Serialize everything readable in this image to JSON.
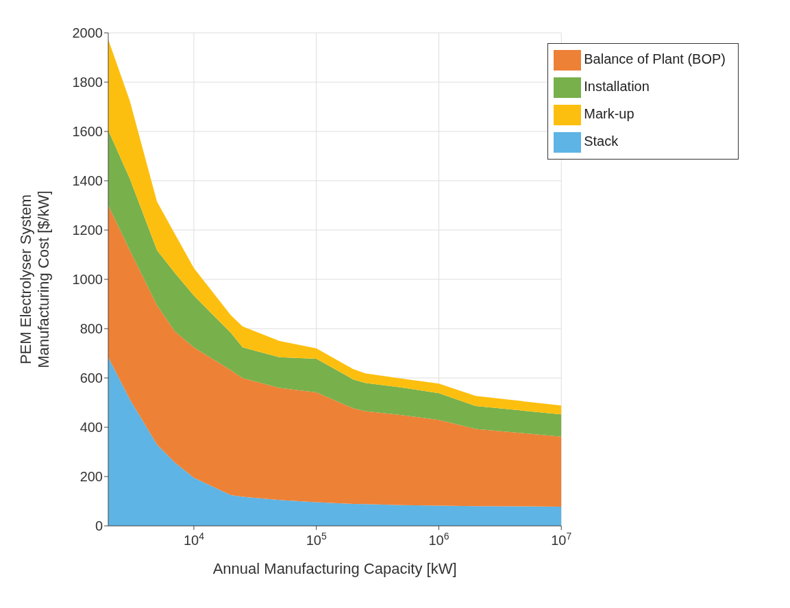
{
  "chart_data": {
    "type": "area",
    "stacked": true,
    "xlabel": "Annual Manufacturing Capacity [kW]",
    "ylabel": "PEM Electrolyser System\nManufacturing Cost [$/kW]",
    "x": [
      2000,
      3000,
      5000,
      7000,
      10000,
      20000,
      25000,
      50000,
      100000,
      200000,
      250000,
      500000,
      1000000,
      2000000,
      10000000
    ],
    "series": [
      {
        "name": "Stack",
        "color": "#5db4e5",
        "values": [
          684,
          513,
          330,
          257,
          195,
          125,
          118,
          105,
          96,
          89,
          88,
          84,
          82,
          80,
          78
        ]
      },
      {
        "name": "Balance of Plant (BOP)",
        "color": "#ed8136",
        "values": [
          616,
          605,
          565,
          532,
          529,
          507,
          481,
          455,
          446,
          388,
          377,
          365,
          348,
          313,
          284
        ]
      },
      {
        "name": "Installation",
        "color": "#78b04b",
        "values": [
          305,
          290,
          223,
          237,
          210,
          151,
          125,
          124,
          136,
          117,
          115,
          112,
          108,
          93,
          90
        ]
      },
      {
        "name": "Mark-up",
        "color": "#fdbf0f",
        "values": [
          368,
          316,
          197,
          158,
          112,
          72,
          85,
          66,
          42,
          42,
          39,
          36,
          39,
          41,
          36
        ]
      }
    ],
    "log": "x",
    "xlim": [
      2000,
      10000000
    ],
    "xticks": [
      {
        "value": 10000,
        "label": "10$^{4}$"
      },
      {
        "value": 100000,
        "label": "10$^{5}$"
      },
      {
        "value": 1000000,
        "label": "10$^{6}$"
      },
      {
        "value": 10000000,
        "label": "10$^{7}$"
      }
    ],
    "ylim": [
      0,
      2000
    ],
    "yticks": [
      0,
      200,
      400,
      600,
      800,
      1000,
      1200,
      1400,
      1600,
      1800,
      2000
    ],
    "grid": true,
    "legend": "top right"
  }
}
